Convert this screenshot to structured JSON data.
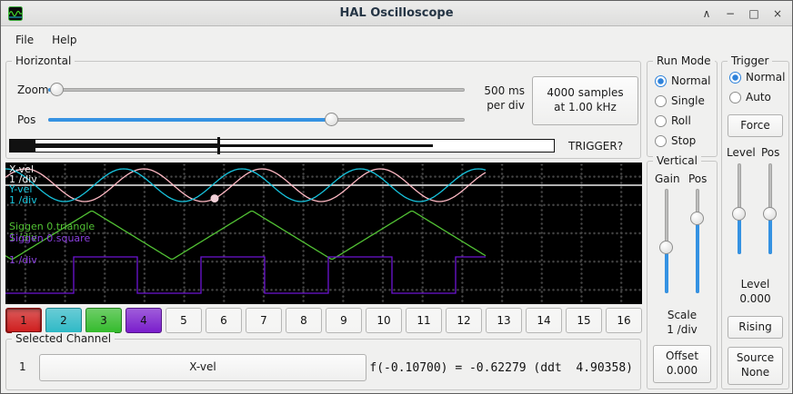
{
  "window": {
    "title": "HAL Oscilloscope",
    "controls": {
      "shade": "∧",
      "minimize": "−",
      "maximize": "□",
      "close": "×"
    }
  },
  "menu": {
    "items": [
      {
        "label": "File"
      },
      {
        "label": "Help"
      }
    ]
  },
  "horizontal": {
    "title": "Horizontal",
    "zoom_label": "Zoom",
    "pos_label": "Pos",
    "rate_line1": "500 ms",
    "rate_line2": "per div",
    "samples_line1": "4000 samples",
    "samples_line2": "at 1.00 kHz",
    "trigger_question": "TRIGGER?"
  },
  "run_mode": {
    "title": "Run Mode",
    "options": [
      {
        "label": "Normal",
        "selected": true
      },
      {
        "label": "Single",
        "selected": false
      },
      {
        "label": "Roll",
        "selected": false
      },
      {
        "label": "Stop",
        "selected": false
      }
    ]
  },
  "trigger": {
    "title": "Trigger",
    "options": [
      {
        "label": "Normal",
        "selected": true
      },
      {
        "label": "Auto",
        "selected": false
      }
    ],
    "force_button": "Force",
    "level_slider_label": "Level",
    "pos_slider_label": "Pos",
    "level_caption": "Level",
    "level_value": "0.000",
    "slope_button": "Rising",
    "source_line1": "Source",
    "source_line2": "None"
  },
  "vertical": {
    "title": "Vertical",
    "gain_label": "Gain",
    "pos_label": "Pos",
    "scale_caption": "Scale",
    "scale_value": "1 /div",
    "offset_line1": "Offset",
    "offset_line2": "0.000"
  },
  "scope": {
    "background": "#000000",
    "trigger_level_line_color": "#ededed",
    "marker_color": "#f2d0d8",
    "channels": [
      {
        "name": "X-vel",
        "scale": "1 /div",
        "label_color": "#f2f2f2",
        "trace_color": "#ffb9c4"
      },
      {
        "name": "Y-vel",
        "scale": "1 /div",
        "label_color": "#19c8e0",
        "trace_color": "#17c3dd"
      },
      {
        "name": "Siggen 0.triangle",
        "scale": "1 /div",
        "label_color": "#52c234",
        "trace_color": "#52c234"
      },
      {
        "name": "Siggen 0.square",
        "scale": "1 /div",
        "label_color": "#8b3fe0",
        "trace_color": "#6d14d4"
      }
    ]
  },
  "channel_buttons": [
    {
      "label": "1",
      "color": "#cf1d1d",
      "border": "#8f1010",
      "selected": true
    },
    {
      "label": "2",
      "color": "#2fb9c6",
      "border": "#1d828c",
      "selected": false
    },
    {
      "label": "3",
      "color": "#35bb2d",
      "border": "#237f1e",
      "selected": false
    },
    {
      "label": "4",
      "color": "#7a1ecc",
      "border": "#531587",
      "selected": false
    },
    {
      "label": "5",
      "color": "#f4f4f3",
      "border": "#b6b6b5",
      "selected": false
    },
    {
      "label": "6",
      "color": "#f4f4f3",
      "border": "#b6b6b5",
      "selected": false
    },
    {
      "label": "7",
      "color": "#f4f4f3",
      "border": "#b6b6b5",
      "selected": false
    },
    {
      "label": "8",
      "color": "#f4f4f3",
      "border": "#b6b6b5",
      "selected": false
    },
    {
      "label": "9",
      "color": "#f4f4f3",
      "border": "#b6b6b5",
      "selected": false
    },
    {
      "label": "10",
      "color": "#f4f4f3",
      "border": "#b6b6b5",
      "selected": false
    },
    {
      "label": "11",
      "color": "#f4f4f3",
      "border": "#b6b6b5",
      "selected": false
    },
    {
      "label": "12",
      "color": "#f4f4f3",
      "border": "#b6b6b5",
      "selected": false
    },
    {
      "label": "13",
      "color": "#f4f4f3",
      "border": "#b6b6b5",
      "selected": false
    },
    {
      "label": "14",
      "color": "#f4f4f3",
      "border": "#b6b6b5",
      "selected": false
    },
    {
      "label": "15",
      "color": "#f4f4f3",
      "border": "#b6b6b5",
      "selected": false
    },
    {
      "label": "16",
      "color": "#f4f4f3",
      "border": "#b6b6b5",
      "selected": false
    }
  ],
  "selected_channel": {
    "title": "Selected Channel",
    "number": "1",
    "channel_button": "X-vel",
    "readout": "f(-0.10700) = -0.62279 (ddt  4.90358)"
  }
}
